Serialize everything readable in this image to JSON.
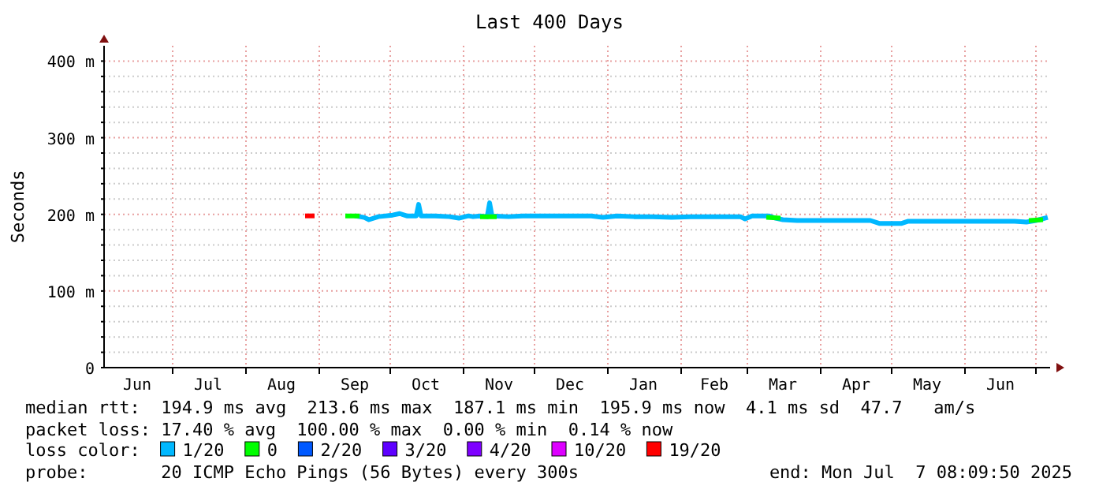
{
  "chart_data": {
    "type": "line",
    "title": "Last 400 Days",
    "ylabel": "Seconds",
    "xlim": [
      "2024-06-02",
      "2025-07-07"
    ],
    "xticks": [
      {
        "value": "2024-06-16",
        "label": "Jun"
      },
      {
        "value": "2024-07-01",
        "label": null
      },
      {
        "value": "2024-07-16",
        "label": "Jul"
      },
      {
        "value": "2024-08-01",
        "label": null
      },
      {
        "value": "2024-08-16",
        "label": "Aug"
      },
      {
        "value": "2024-09-01",
        "label": null
      },
      {
        "value": "2024-09-16",
        "label": "Sep"
      },
      {
        "value": "2024-10-01",
        "label": null
      },
      {
        "value": "2024-10-16",
        "label": "Oct"
      },
      {
        "value": "2024-11-01",
        "label": null
      },
      {
        "value": "2024-11-16",
        "label": "Nov"
      },
      {
        "value": "2024-12-01",
        "label": null
      },
      {
        "value": "2024-12-16",
        "label": "Dec"
      },
      {
        "value": "2025-01-01",
        "label": null
      },
      {
        "value": "2025-01-16",
        "label": "Jan"
      },
      {
        "value": "2025-02-01",
        "label": null
      },
      {
        "value": "2025-02-15",
        "label": "Feb"
      },
      {
        "value": "2025-03-01",
        "label": null
      },
      {
        "value": "2025-03-16",
        "label": "Mar"
      },
      {
        "value": "2025-04-01",
        "label": null
      },
      {
        "value": "2025-04-16",
        "label": "Apr"
      },
      {
        "value": "2025-05-01",
        "label": null
      },
      {
        "value": "2025-05-16",
        "label": "May"
      },
      {
        "value": "2025-06-01",
        "label": null
      },
      {
        "value": "2025-06-16",
        "label": "Jun"
      },
      {
        "value": "2025-07-01",
        "label": null
      }
    ],
    "ylim": [
      0,
      420
    ],
    "yticks": [
      {
        "value": 0,
        "label": "0"
      },
      {
        "value": 20,
        "label": null
      },
      {
        "value": 40,
        "label": null
      },
      {
        "value": 60,
        "label": null
      },
      {
        "value": 80,
        "label": null
      },
      {
        "value": 100,
        "label": "100 m"
      },
      {
        "value": 120,
        "label": null
      },
      {
        "value": 140,
        "label": null
      },
      {
        "value": 160,
        "label": null
      },
      {
        "value": 180,
        "label": null
      },
      {
        "value": 200,
        "label": "200 m"
      },
      {
        "value": 220,
        "label": null
      },
      {
        "value": 240,
        "label": null
      },
      {
        "value": 260,
        "label": null
      },
      {
        "value": 280,
        "label": null
      },
      {
        "value": 300,
        "label": "300 m"
      },
      {
        "value": 320,
        "label": null
      },
      {
        "value": 340,
        "label": null
      },
      {
        "value": 360,
        "label": null
      },
      {
        "value": 380,
        "label": null
      },
      {
        "value": 400,
        "label": "400 m"
      }
    ],
    "grid": true,
    "legend": "bottom",
    "legend_title": "loss color:",
    "series": [
      {
        "name": "1/20",
        "color": "#00b8ff",
        "x": [
          "2024-09-16",
          "2024-09-20",
          "2024-09-22",
          "2024-09-26",
          "2024-10-02",
          "2024-10-05",
          "2024-10-08",
          "2024-10-12",
          "2024-10-13",
          "2024-10-14",
          "2024-10-20",
          "2024-10-26",
          "2024-10-30",
          "2024-11-03",
          "2024-11-05",
          "2024-11-08",
          "2024-11-11",
          "2024-11-12",
          "2024-11-13",
          "2024-11-20",
          "2024-11-26",
          "2024-12-05",
          "2024-12-15",
          "2024-12-25",
          "2024-12-30",
          "2025-01-05",
          "2025-01-12",
          "2025-01-20",
          "2025-01-28",
          "2025-02-05",
          "2025-02-12",
          "2025-02-20",
          "2025-02-26",
          "2025-02-28",
          "2025-03-03",
          "2025-03-10",
          "2025-03-13",
          "2025-03-16",
          "2025-03-22",
          "2025-03-30",
          "2025-04-08",
          "2025-04-16",
          "2025-04-22",
          "2025-04-26",
          "2025-05-05",
          "2025-05-08",
          "2025-05-15",
          "2025-05-25",
          "2025-06-05",
          "2025-06-15",
          "2025-06-22",
          "2025-06-27",
          "2025-07-01",
          "2025-07-06"
        ],
        "values": [
          198,
          196,
          193,
          197,
          199,
          201,
          198,
          198,
          213,
          198,
          198,
          197,
          195,
          198,
          197,
          198,
          197,
          215,
          198,
          197,
          198,
          198,
          198,
          198,
          196,
          198,
          197,
          197,
          196,
          197,
          197,
          197,
          197,
          194,
          198,
          198,
          195,
          193,
          192,
          192,
          192,
          192,
          192,
          188,
          188,
          191,
          191,
          191,
          191,
          191,
          191,
          190,
          192,
          196
        ]
      },
      {
        "name": "0",
        "color": "#00ff00",
        "x": [
          "2024-09-12",
          "2024-09-18",
          "2024-09-19",
          "2024-11-08",
          "2024-11-15",
          "2024-11-16",
          "2025-03-09",
          "2025-03-15",
          "2025-03-16",
          "2025-06-28",
          "2025-07-04"
        ],
        "values": [
          198,
          198,
          null,
          197,
          197,
          null,
          196,
          195,
          null,
          192,
          193
        ]
      },
      {
        "name": "2/20",
        "color": "#0059ff"
      },
      {
        "name": "3/20",
        "color": "#5e00ff"
      },
      {
        "name": "4/20",
        "color": "#7e00ff"
      },
      {
        "name": "10/20",
        "color": "#dd00ff"
      },
      {
        "name": "19/20",
        "color": "#ff0000",
        "x": [
          "2024-08-26",
          "2024-08-30"
        ],
        "values": [
          198,
          198
        ]
      }
    ],
    "annotations": [
      "median rtt:  194.9 ms avg  213.6 ms max  187.1 ms min  195.9 ms now  4.1 ms sd  47.7   am/s",
      "packet loss: 17.40 % avg  100.00 % max  0.00 % min  0.14 % now",
      "probe:       20 ICMP Echo Pings (56 Bytes) every 300s",
      "end: Mon Jul  7 08:09:50 2025"
    ]
  }
}
